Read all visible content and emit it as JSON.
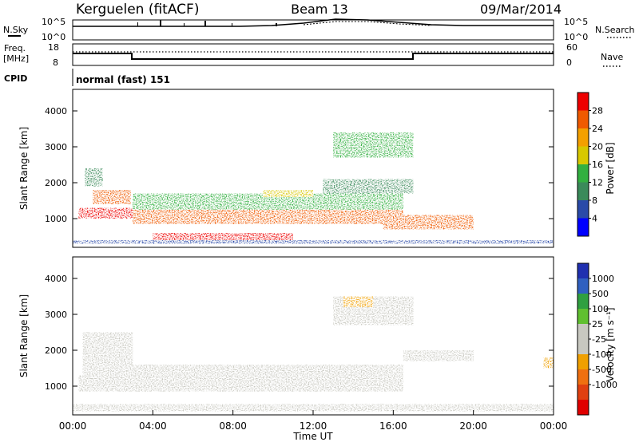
{
  "header": {
    "station": "Kerguelen (fitACF)",
    "beam": "Beam 13",
    "date": "09/Mar/2014"
  },
  "panels": {
    "nsky": {
      "label": "N.Sky",
      "tick_top": "10^5",
      "tick_bottom": "10^0"
    },
    "nsearch": {
      "label": "N.Search",
      "tick_top": "10^5",
      "tick_bottom": "10^0"
    },
    "freq": {
      "label_line1": "Freq.",
      "label_line2": "[MHz]",
      "tick_top": "18",
      "tick_bottom": "8"
    },
    "nave": {
      "label": "Nave",
      "tick_top": "60",
      "tick_bottom": "0"
    },
    "cpid": {
      "label": "CPID",
      "value": "normal (fast) 151"
    }
  },
  "colors": {
    "power_scale": [
      "#0000ff",
      "#2a4aa8",
      "#3a8a5a",
      "#32b040",
      "#d8c800",
      "#f4a000",
      "#f05a00",
      "#ee0000"
    ],
    "velocity_scale": [
      "#2030b0",
      "#3060c0",
      "#30a040",
      "#60c030",
      "#c8c8c0",
      "#c8c8c0",
      "#f0a000",
      "#f07010",
      "#e04010",
      "#e00000"
    ]
  },
  "chart_data": [
    {
      "type": "heatmap",
      "panel": "power",
      "xlabel": "",
      "ylabel": "Slant Range [km]",
      "ylim": [
        200,
        4600
      ],
      "xlim": [
        0,
        24
      ],
      "yticks": [
        "1000",
        "2000",
        "3000",
        "4000"
      ],
      "colorbar": {
        "label": "Power [dB]",
        "ticks": [
          "4",
          "8",
          "12",
          "16",
          "20",
          "24",
          "28"
        ],
        "range": [
          0,
          32
        ]
      },
      "features": [
        {
          "x": [
            0.3,
            3.0
          ],
          "y": [
            1000,
            1300
          ],
          "value_db": 28
        },
        {
          "x": [
            1.0,
            2.9
          ],
          "y": [
            1400,
            1800
          ],
          "value_db": 26
        },
        {
          "x": [
            0.6,
            1.5
          ],
          "y": [
            1900,
            2400
          ],
          "value_db": 10
        },
        {
          "x": [
            3.0,
            16.5
          ],
          "y": [
            850,
            1250
          ],
          "value_db": 26
        },
        {
          "x": [
            3.0,
            16.5
          ],
          "y": [
            1250,
            1700
          ],
          "value_db": 12
        },
        {
          "x": [
            9.5,
            12.0
          ],
          "y": [
            1600,
            1800
          ],
          "value_db": 18
        },
        {
          "x": [
            4.0,
            11.0
          ],
          "y": [
            400,
            600
          ],
          "value_db": 28
        },
        {
          "x": [
            12.5,
            17.0
          ],
          "y": [
            1700,
            2100
          ],
          "value_db": 8
        },
        {
          "x": [
            15.5,
            20.0
          ],
          "y": [
            700,
            1100
          ],
          "value_db": 26
        },
        {
          "x": [
            13.0,
            17.0
          ],
          "y": [
            2700,
            3400
          ],
          "value_db": 14
        },
        {
          "x": [
            0.0,
            24.0
          ],
          "y": [
            300,
            400
          ],
          "value_db": 6
        }
      ]
    },
    {
      "type": "heatmap",
      "panel": "velocity",
      "xlabel": "Time UT",
      "ylabel": "Slant Range [km]",
      "ylim": [
        200,
        4600
      ],
      "xlim": [
        0,
        24
      ],
      "yticks": [
        "1000",
        "2000",
        "3000",
        "4000"
      ],
      "xticks": [
        "00:00",
        "04:00",
        "08:00",
        "12:00",
        "16:00",
        "20:00",
        "00:00"
      ],
      "colorbar": {
        "label": "Velocity [m s⁻¹]",
        "ticks": [
          "1000",
          "500",
          "100",
          "25",
          "-25",
          "-100",
          "-500",
          "-1000"
        ],
        "range": [
          -1000,
          1000
        ]
      },
      "features": [
        {
          "x": [
            0.3,
            16.5
          ],
          "y": [
            850,
            1300
          ],
          "value": 0
        },
        {
          "x": [
            0.5,
            3.0
          ],
          "y": [
            1300,
            2500
          ],
          "value": 0
        },
        {
          "x": [
            3.0,
            16.5
          ],
          "y": [
            1300,
            1600
          ],
          "value": 0
        },
        {
          "x": [
            13.0,
            17.0
          ],
          "y": [
            2700,
            3500
          ],
          "value": 100
        },
        {
          "x": [
            13.5,
            15.0
          ],
          "y": [
            3200,
            3500
          ],
          "value": -200
        },
        {
          "x": [
            16.5,
            20.0
          ],
          "y": [
            1700,
            2000
          ],
          "value": 150
        },
        {
          "x": [
            0.0,
            24.0
          ],
          "y": [
            300,
            500
          ],
          "value": -100
        },
        {
          "x": [
            23.5,
            24.0
          ],
          "y": [
            1500,
            1800
          ],
          "value": -300
        }
      ]
    }
  ]
}
